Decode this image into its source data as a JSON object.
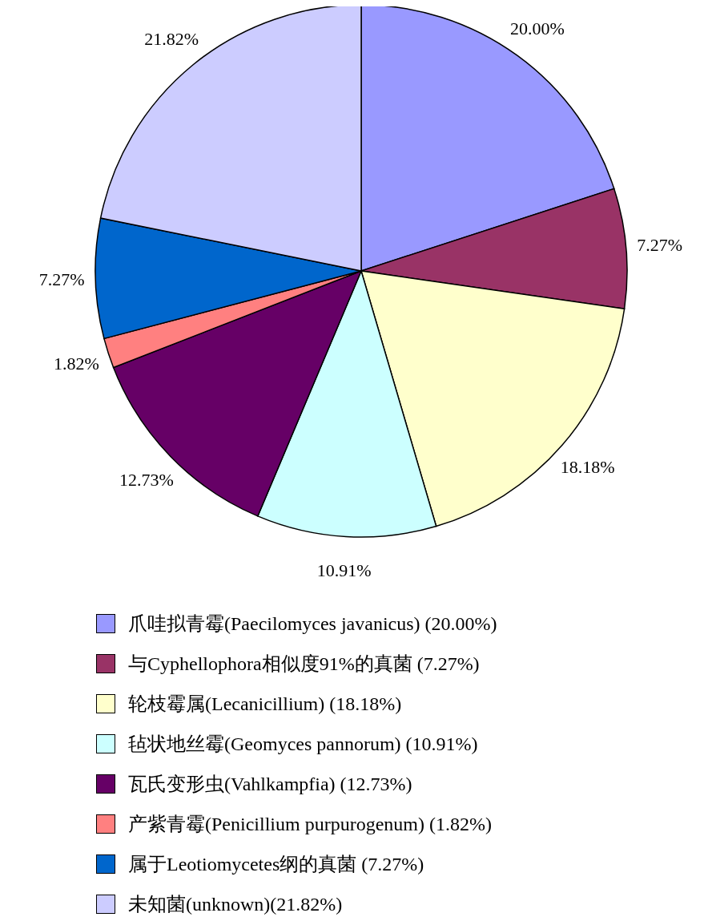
{
  "chart_data": {
    "type": "pie",
    "categories": [
      "爪哇拟青霉(Paecilomyces javanicus) (20.00%)",
      "与Cyphellophora相似度91%的真菌 (7.27%)",
      "轮枝霉属(Lecanicillium) (18.18%)",
      "毡状地丝霉(Geomyces pannorum) (10.91%)",
      "瓦氏变形虫(Vahlkampfia) (12.73%)",
      "产紫青霉(Penicillium purpurogenum) (1.82%)",
      "属于Leotiomycetes纲的真菌 (7.27%)",
      "未知菌(unknown)(21.82%)"
    ],
    "values": [
      20.0,
      7.27,
      18.18,
      10.91,
      12.73,
      1.82,
      7.27,
      21.82
    ],
    "value_labels": [
      "20.00%",
      "7.27%",
      "18.18%",
      "10.91%",
      "12.73%",
      "1.82%",
      "7.27%",
      "21.82%"
    ],
    "colors": [
      "#9999ff",
      "#993366",
      "#ffffcc",
      "#ccffff",
      "#660066",
      "#ff8080",
      "#0066cc",
      "#ccccff"
    ],
    "legend": "bottom"
  }
}
